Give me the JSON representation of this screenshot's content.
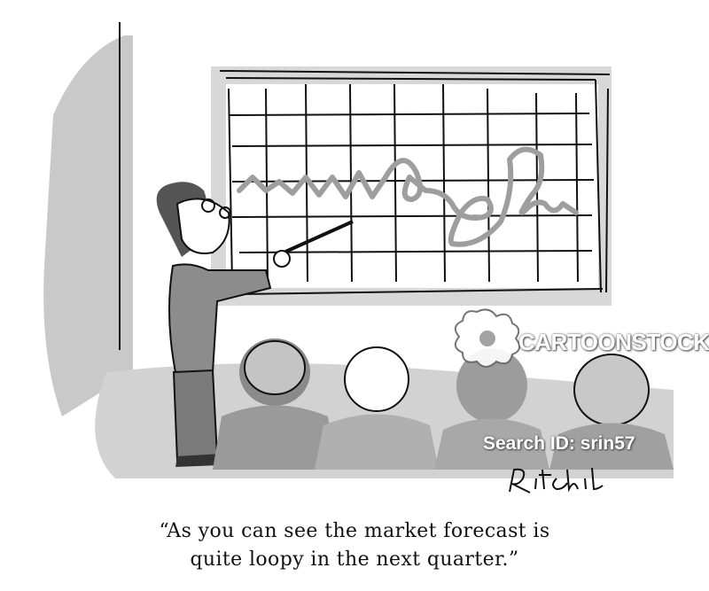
{
  "image": {
    "watermark": {
      "brand": "CARTOONSTOCK",
      "search_id": "Search ID: srin57"
    },
    "signature": "Ritchie",
    "caption": {
      "line1": "“As you can see the market forecast is",
      "line2": "quite loopy in the next quarter.”"
    }
  }
}
